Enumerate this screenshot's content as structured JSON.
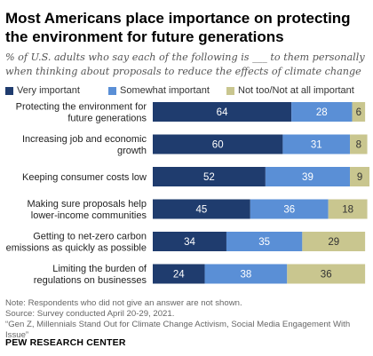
{
  "title": "Most Americans place importance on protecting the environment for future generations",
  "subtitle": "% of U.S. adults who say each of the following is ___ to them personally when thinking about proposals to reduce the effects of climate change",
  "chart_data": {
    "type": "bar",
    "orientation": "horizontal",
    "stacked": true,
    "title": "Most Americans place importance on protecting the environment for future generations",
    "subtitle": "% of U.S. adults who say each of the following is ___ to them personally when thinking about proposals to reduce the effects of climate change",
    "legend_position": "top",
    "grid": false,
    "xlim": [
      0,
      100
    ],
    "categories": [
      [
        "Protecting the environment for",
        "future generations"
      ],
      [
        "Increasing job and economic",
        "growth"
      ],
      [
        "Keeping consumer costs low"
      ],
      [
        "Making sure proposals help",
        "lower-income communities"
      ],
      [
        "Getting to net-zero carbon",
        "emissions as quickly as possible"
      ],
      [
        "Limiting the burden of",
        "regulations on businesses"
      ]
    ],
    "series": [
      {
        "name": "Very important",
        "color": "#1f3c6e",
        "label_color": "#ffffff",
        "values": [
          64,
          60,
          52,
          45,
          34,
          24
        ]
      },
      {
        "name": "Somewhat important",
        "color": "#5a8fd6",
        "label_color": "#ffffff",
        "values": [
          28,
          31,
          39,
          36,
          35,
          38
        ]
      },
      {
        "name": "Not too/Not at all important",
        "color": "#c9c68f",
        "label_color": "#333333",
        "values": [
          6,
          8,
          9,
          18,
          29,
          36
        ]
      }
    ]
  },
  "notes": [
    "Note: Respondents who did not give an answer are not shown.",
    "Source: Survey conducted April 20-29, 2021.",
    "“Gen Z, Millennials Stand Out for Climate Change Activism, Social Media Engagement With",
    "Issue”"
  ],
  "org": "PEW RESEARCH CENTER"
}
